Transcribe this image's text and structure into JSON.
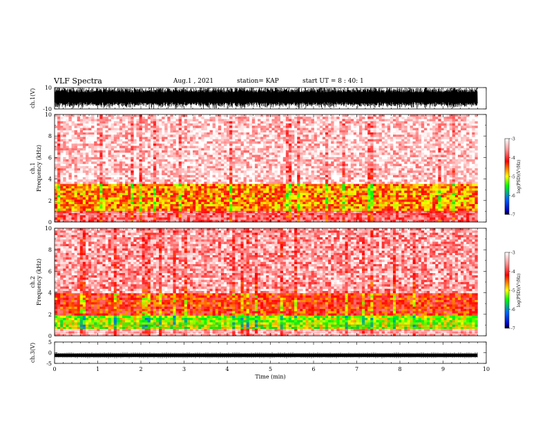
{
  "header": {
    "title": "VLF Spectra",
    "date": "Aug.1 , 2021",
    "station": "station= KAP",
    "start": "start UT = 8 : 40: 1"
  },
  "colorbar": {
    "label": "log(PSD)(V²/Hz)",
    "ticks": [
      "-3",
      "-4",
      "-5",
      "-6",
      "-7"
    ],
    "colors": [
      "#ffffff",
      "#ff8080",
      "#ff0000",
      "#ffff00",
      "#00ff00",
      "#00aaff",
      "#0000ff",
      "#000000"
    ]
  },
  "chart_data": [
    {
      "type": "line",
      "panel": "ch1-waveform",
      "ylabel": "ch.1(V)",
      "ylim": [
        -10,
        10
      ],
      "yticks": [
        "10",
        "-10"
      ],
      "description_values": {
        "amplitude_range": [
          -10,
          10
        ]
      }
    },
    {
      "type": "heatmap",
      "panel": "ch1-spectrogram",
      "ylabel": "ch.1\nFrequency (kHz)",
      "ylim": [
        0,
        10
      ],
      "yticks": [
        "0",
        "2",
        "4",
        "6",
        "8",
        "10"
      ],
      "bands_khz": [
        {
          "range": [
            1.0,
            3.6
          ],
          "level": -4.3
        },
        {
          "range": [
            0.0,
            1.0
          ],
          "level": -3.6
        },
        {
          "range": [
            3.6,
            10.0
          ],
          "level": -3.2
        }
      ]
    },
    {
      "type": "heatmap",
      "panel": "ch2-spectrogram",
      "ylabel": "ch.2\nFrequency (kHz)",
      "ylim": [
        0,
        10
      ],
      "yticks": [
        "0",
        "2",
        "4",
        "6",
        "8",
        "10"
      ],
      "bands_khz": [
        {
          "range": [
            0.7,
            1.8
          ],
          "level": -4.8
        },
        {
          "range": [
            1.8,
            4.0
          ],
          "level": -4.0
        },
        {
          "range": [
            4.0,
            10.0
          ],
          "level": -3.4
        }
      ]
    },
    {
      "type": "line",
      "panel": "ch3-waveform",
      "ylabel": "ch.3(V)",
      "ylim": [
        -5,
        5
      ],
      "yticks": [
        "5",
        "0",
        "-5"
      ],
      "description_values": {
        "baseline": -1.2
      }
    }
  ],
  "xaxis": {
    "label": "Time (min)",
    "xlim": [
      0,
      10
    ],
    "ticks": [
      "0",
      "1",
      "2",
      "3",
      "4",
      "5",
      "6",
      "7",
      "8",
      "9",
      "10"
    ],
    "data_end": 9.8
  }
}
